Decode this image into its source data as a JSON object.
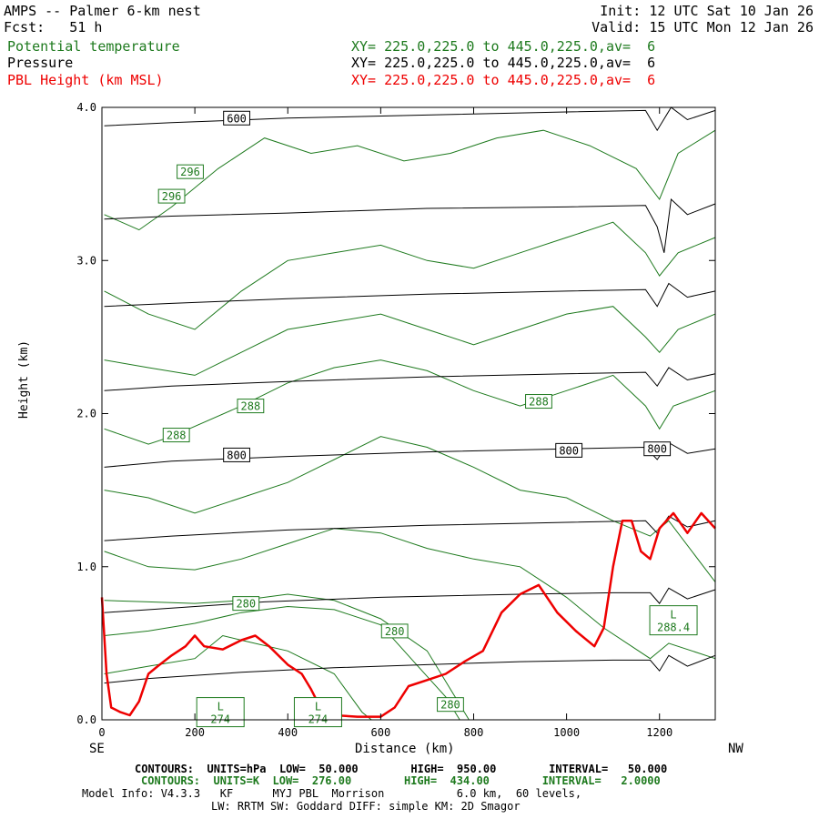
{
  "header": {
    "title": "AMPS -- Palmer 6-km nest",
    "fcst": "Fcst:   51 h",
    "init": "Init: 12 UTC Sat 10 Jan 26",
    "valid": "Valid: 15 UTC Mon 12 Jan 26",
    "fields": [
      {
        "name": "Potential temperature",
        "xy": "XY= 225.0,225.0 to 445.0,225.0,av=  6",
        "color": "#1e7a1e"
      },
      {
        "name": "Pressure",
        "xy": "XY= 225.0,225.0 to 445.0,225.0,av=  6",
        "color": "#000000"
      },
      {
        "name": "PBL Height (km MSL)",
        "xy": "XY= 225.0,225.0 to 445.0,225.0,av=  6",
        "color": "#ee0000"
      }
    ]
  },
  "chart_data": {
    "type": "line",
    "ylabel": "Height (km)",
    "xlabel": "Distance (km)",
    "x_left_label": "SE",
    "x_right_label": "NW",
    "xlim": [
      0,
      1320
    ],
    "ylim": [
      0,
      4.0
    ],
    "xticks": [
      "0",
      "200",
      "400",
      "600",
      "800",
      "1000",
      "1200"
    ],
    "xtick_values": [
      0,
      200,
      400,
      600,
      800,
      1000,
      1200
    ],
    "yticks": [
      "0.0",
      "1.0",
      "2.0",
      "3.0",
      "4.0"
    ],
    "ytick_values": [
      0,
      1,
      2,
      3,
      4
    ],
    "pressure_contours": [
      {
        "label": "",
        "points": [
          [
            5,
            0.24
          ],
          [
            100,
            0.27
          ],
          [
            300,
            0.31
          ],
          [
            500,
            0.34
          ],
          [
            700,
            0.36
          ],
          [
            900,
            0.38
          ],
          [
            1100,
            0.39
          ],
          [
            1180,
            0.39
          ],
          [
            1200,
            0.32
          ],
          [
            1220,
            0.42
          ],
          [
            1260,
            0.35
          ],
          [
            1320,
            0.42
          ]
        ]
      },
      {
        "label": "",
        "points": [
          [
            5,
            0.7
          ],
          [
            150,
            0.73
          ],
          [
            350,
            0.77
          ],
          [
            600,
            0.8
          ],
          [
            900,
            0.82
          ],
          [
            1100,
            0.83
          ],
          [
            1180,
            0.83
          ],
          [
            1200,
            0.76
          ],
          [
            1220,
            0.86
          ],
          [
            1260,
            0.79
          ],
          [
            1320,
            0.85
          ]
        ]
      },
      {
        "label": "",
        "points": [
          [
            5,
            1.17
          ],
          [
            150,
            1.2
          ],
          [
            400,
            1.24
          ],
          [
            700,
            1.27
          ],
          [
            1000,
            1.29
          ],
          [
            1170,
            1.3
          ],
          [
            1195,
            1.22
          ],
          [
            1220,
            1.33
          ],
          [
            1260,
            1.26
          ],
          [
            1320,
            1.3
          ]
        ]
      },
      {
        "label": "800",
        "label_at": [
          [
            290,
            1.73
          ],
          [
            1005,
            1.76
          ],
          [
            1195,
            1.77
          ]
        ],
        "points": [
          [
            5,
            1.65
          ],
          [
            150,
            1.69
          ],
          [
            400,
            1.72
          ],
          [
            700,
            1.75
          ],
          [
            1000,
            1.77
          ],
          [
            1170,
            1.78
          ],
          [
            1195,
            1.7
          ],
          [
            1220,
            1.81
          ],
          [
            1260,
            1.74
          ],
          [
            1320,
            1.77
          ]
        ]
      },
      {
        "label": "",
        "points": [
          [
            5,
            2.15
          ],
          [
            150,
            2.18
          ],
          [
            400,
            2.21
          ],
          [
            700,
            2.24
          ],
          [
            1000,
            2.26
          ],
          [
            1170,
            2.27
          ],
          [
            1195,
            2.18
          ],
          [
            1220,
            2.3
          ],
          [
            1260,
            2.22
          ],
          [
            1320,
            2.26
          ]
        ]
      },
      {
        "label": "",
        "points": [
          [
            5,
            2.7
          ],
          [
            150,
            2.72
          ],
          [
            400,
            2.75
          ],
          [
            700,
            2.78
          ],
          [
            1000,
            2.8
          ],
          [
            1170,
            2.81
          ],
          [
            1195,
            2.7
          ],
          [
            1220,
            2.85
          ],
          [
            1260,
            2.76
          ],
          [
            1320,
            2.8
          ]
        ]
      },
      {
        "label": "",
        "points": [
          [
            5,
            3.27
          ],
          [
            150,
            3.29
          ],
          [
            400,
            3.31
          ],
          [
            700,
            3.34
          ],
          [
            1000,
            3.35
          ],
          [
            1170,
            3.36
          ],
          [
            1195,
            3.22
          ],
          [
            1210,
            3.05
          ],
          [
            1225,
            3.4
          ],
          [
            1260,
            3.3
          ],
          [
            1320,
            3.37
          ]
        ]
      },
      {
        "label": "600",
        "label_at": [
          [
            290,
            3.93
          ]
        ],
        "points": [
          [
            5,
            3.88
          ],
          [
            150,
            3.9
          ],
          [
            400,
            3.93
          ],
          [
            700,
            3.95
          ],
          [
            1000,
            3.97
          ],
          [
            1170,
            3.98
          ],
          [
            1195,
            3.85
          ],
          [
            1225,
            4.0
          ],
          [
            1260,
            3.92
          ],
          [
            1320,
            3.98
          ]
        ]
      }
    ],
    "theta_contours": [
      {
        "label": "280",
        "label_at": [
          [
            310,
            0.76
          ],
          [
            630,
            0.58
          ]
        ],
        "points": [
          [
            5,
            0.78
          ],
          [
            100,
            0.77
          ],
          [
            200,
            0.76
          ],
          [
            300,
            0.78
          ],
          [
            400,
            0.82
          ],
          [
            500,
            0.78
          ],
          [
            600,
            0.66
          ],
          [
            700,
            0.45
          ],
          [
            760,
            0.15
          ],
          [
            790,
            0.0
          ]
        ]
      },
      {
        "label": "280",
        "label_at": [
          [
            750,
            0.1
          ]
        ],
        "points": [
          [
            5,
            0.55
          ],
          [
            100,
            0.58
          ],
          [
            200,
            0.63
          ],
          [
            300,
            0.7
          ],
          [
            400,
            0.74
          ],
          [
            500,
            0.72
          ],
          [
            600,
            0.62
          ],
          [
            680,
            0.35
          ],
          [
            740,
            0.15
          ],
          [
            770,
            0.0
          ]
        ]
      },
      {
        "label": "",
        "points": [
          [
            5,
            0.3
          ],
          [
            100,
            0.35
          ],
          [
            200,
            0.4
          ],
          [
            260,
            0.55
          ],
          [
            300,
            0.52
          ],
          [
            400,
            0.45
          ],
          [
            500,
            0.3
          ],
          [
            560,
            0.05
          ],
          [
            580,
            0.0
          ]
        ]
      },
      {
        "label": "",
        "points": [
          [
            5,
            1.1
          ],
          [
            100,
            1.0
          ],
          [
            200,
            0.98
          ],
          [
            300,
            1.05
          ],
          [
            400,
            1.15
          ],
          [
            500,
            1.25
          ],
          [
            600,
            1.22
          ],
          [
            700,
            1.12
          ],
          [
            800,
            1.05
          ],
          [
            900,
            1.0
          ],
          [
            1000,
            0.8
          ],
          [
            1080,
            0.6
          ],
          [
            1180,
            0.4
          ],
          [
            1220,
            0.5
          ],
          [
            1320,
            0.4
          ]
        ]
      },
      {
        "label": "",
        "points": [
          [
            5,
            1.5
          ],
          [
            100,
            1.45
          ],
          [
            200,
            1.35
          ],
          [
            300,
            1.45
          ],
          [
            400,
            1.55
          ],
          [
            500,
            1.7
          ],
          [
            600,
            1.85
          ],
          [
            700,
            1.78
          ],
          [
            800,
            1.65
          ],
          [
            900,
            1.5
          ],
          [
            1000,
            1.45
          ],
          [
            1100,
            1.3
          ],
          [
            1180,
            1.2
          ],
          [
            1220,
            1.3
          ],
          [
            1320,
            0.9
          ]
        ]
      },
      {
        "label": "288",
        "label_at": [
          [
            160,
            1.86
          ],
          [
            320,
            2.05
          ],
          [
            940,
            2.08
          ]
        ],
        "points": [
          [
            5,
            1.9
          ],
          [
            100,
            1.8
          ],
          [
            150,
            1.85
          ],
          [
            300,
            2.05
          ],
          [
            400,
            2.2
          ],
          [
            500,
            2.3
          ],
          [
            600,
            2.35
          ],
          [
            700,
            2.28
          ],
          [
            800,
            2.15
          ],
          [
            900,
            2.05
          ],
          [
            1000,
            2.15
          ],
          [
            1100,
            2.25
          ],
          [
            1170,
            2.05
          ],
          [
            1200,
            1.9
          ],
          [
            1230,
            2.05
          ],
          [
            1320,
            2.15
          ]
        ]
      },
      {
        "label": "",
        "points": [
          [
            5,
            2.35
          ],
          [
            100,
            2.3
          ],
          [
            200,
            2.25
          ],
          [
            300,
            2.4
          ],
          [
            400,
            2.55
          ],
          [
            500,
            2.6
          ],
          [
            600,
            2.65
          ],
          [
            700,
            2.55
          ],
          [
            800,
            2.45
          ],
          [
            900,
            2.55
          ],
          [
            1000,
            2.65
          ],
          [
            1100,
            2.7
          ],
          [
            1170,
            2.5
          ],
          [
            1200,
            2.4
          ],
          [
            1240,
            2.55
          ],
          [
            1320,
            2.65
          ]
        ]
      },
      {
        "label": "",
        "points": [
          [
            5,
            2.8
          ],
          [
            100,
            2.65
          ],
          [
            200,
            2.55
          ],
          [
            300,
            2.8
          ],
          [
            400,
            3.0
          ],
          [
            500,
            3.05
          ],
          [
            600,
            3.1
          ],
          [
            700,
            3.0
          ],
          [
            800,
            2.95
          ],
          [
            900,
            3.05
          ],
          [
            1000,
            3.15
          ],
          [
            1100,
            3.25
          ],
          [
            1170,
            3.05
          ],
          [
            1200,
            2.9
          ],
          [
            1240,
            3.05
          ],
          [
            1320,
            3.15
          ]
        ]
      },
      {
        "label": "296",
        "label_at": [
          [
            150,
            3.42
          ],
          [
            190,
            3.58
          ]
        ],
        "points": [
          [
            5,
            3.3
          ],
          [
            80,
            3.2
          ],
          [
            150,
            3.35
          ],
          [
            250,
            3.6
          ],
          [
            350,
            3.8
          ],
          [
            450,
            3.7
          ],
          [
            550,
            3.75
          ],
          [
            650,
            3.65
          ],
          [
            750,
            3.7
          ],
          [
            850,
            3.8
          ],
          [
            950,
            3.85
          ],
          [
            1050,
            3.75
          ],
          [
            1150,
            3.6
          ],
          [
            1200,
            3.4
          ],
          [
            1240,
            3.7
          ],
          [
            1320,
            3.85
          ]
        ]
      }
    ],
    "low_markers": [
      {
        "label": "L",
        "value": "274",
        "x": 255,
        "y": 0.05
      },
      {
        "label": "L",
        "value": "274",
        "x": 465,
        "y": 0.05
      },
      {
        "label": "L",
        "value": "288.4",
        "x": 1230,
        "y": 0.65
      }
    ],
    "pbl_height": {
      "name": "PBL Height (km MSL)",
      "points": [
        [
          0,
          0.8
        ],
        [
          10,
          0.3
        ],
        [
          20,
          0.08
        ],
        [
          40,
          0.05
        ],
        [
          60,
          0.03
        ],
        [
          80,
          0.12
        ],
        [
          100,
          0.3
        ],
        [
          120,
          0.35
        ],
        [
          150,
          0.42
        ],
        [
          180,
          0.48
        ],
        [
          200,
          0.55
        ],
        [
          220,
          0.48
        ],
        [
          260,
          0.46
        ],
        [
          300,
          0.52
        ],
        [
          330,
          0.55
        ],
        [
          360,
          0.48
        ],
        [
          400,
          0.36
        ],
        [
          430,
          0.3
        ],
        [
          450,
          0.2
        ],
        [
          470,
          0.08
        ],
        [
          500,
          0.03
        ],
        [
          550,
          0.02
        ],
        [
          600,
          0.02
        ],
        [
          630,
          0.08
        ],
        [
          660,
          0.22
        ],
        [
          700,
          0.26
        ],
        [
          740,
          0.3
        ],
        [
          780,
          0.38
        ],
        [
          820,
          0.45
        ],
        [
          860,
          0.7
        ],
        [
          900,
          0.82
        ],
        [
          940,
          0.88
        ],
        [
          980,
          0.7
        ],
        [
          1020,
          0.58
        ],
        [
          1060,
          0.48
        ],
        [
          1080,
          0.6
        ],
        [
          1100,
          1.0
        ],
        [
          1120,
          1.3
        ],
        [
          1140,
          1.3
        ],
        [
          1160,
          1.1
        ],
        [
          1180,
          1.05
        ],
        [
          1200,
          1.25
        ],
        [
          1230,
          1.35
        ],
        [
          1260,
          1.22
        ],
        [
          1290,
          1.35
        ],
        [
          1320,
          1.25
        ]
      ]
    }
  },
  "footer": {
    "line1": "CONTOURS:  UNITS=hPa  LOW=  50.000        HIGH=  950.00        INTERVAL=   50.000",
    "line2": "CONTOURS:  UNITS=K  LOW=  276.00        HIGH=  434.00        INTERVAL=   2.0000",
    "line3": "Model Info: V4.3.3   KF      MYJ PBL  Morrison           6.0 km,  60 levels,",
    "line4": "LW: RRTM SW: Goddard DIFF: simple KM: 2D Smagor"
  }
}
